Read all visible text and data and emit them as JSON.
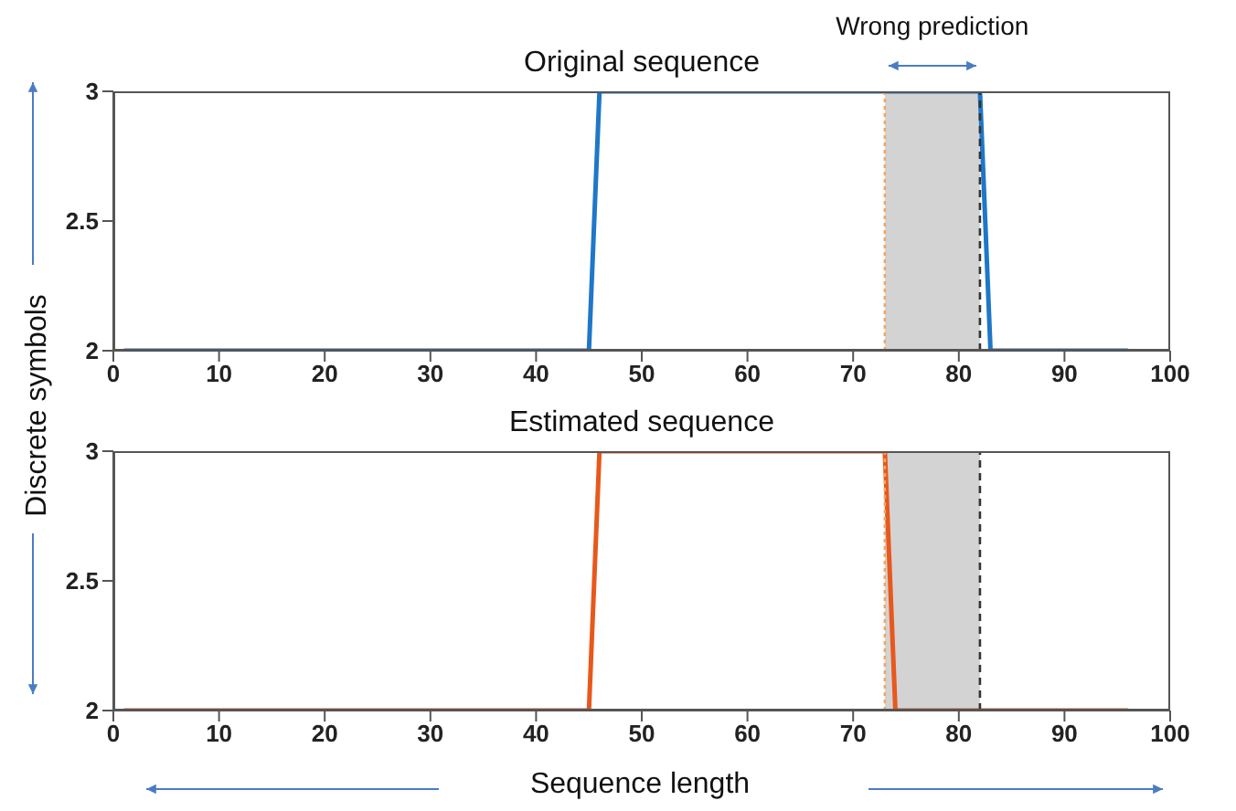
{
  "chart_data": [
    {
      "type": "line",
      "title": "Original sequence",
      "ylabel": "Discrete symbols",
      "x": [
        1,
        45,
        46,
        82,
        83,
        96
      ],
      "series": [
        {
          "color": "#1f77c8",
          "values": [
            2,
            2,
            3,
            3,
            2,
            2
          ]
        }
      ],
      "xlim": [
        0,
        100
      ],
      "xticks": [
        0,
        10,
        20,
        30,
        40,
        50,
        60,
        70,
        80,
        90,
        100
      ],
      "ylim": [
        2,
        3
      ],
      "yticks": [
        2,
        2.5,
        3
      ],
      "bands": [
        {
          "axis": "x",
          "from": 73,
          "to": 82,
          "label": "Wrong prediction",
          "color": "#d3d3d3"
        }
      ],
      "ref_lines": [
        {
          "axis": "x",
          "value": 73,
          "color": "#f4a460",
          "line_style": "dotted"
        },
        {
          "axis": "x",
          "value": 82,
          "color": "#333333",
          "line_style": "dashed"
        }
      ]
    },
    {
      "type": "line",
      "title": "Estimated sequence",
      "xlabel": "Sequence length",
      "x": [
        1,
        45,
        46,
        73,
        74,
        96
      ],
      "series": [
        {
          "color": "#e8581c",
          "values": [
            2,
            2,
            3,
            3,
            2,
            2
          ]
        }
      ],
      "xlim": [
        0,
        100
      ],
      "xticks": [
        0,
        10,
        20,
        30,
        40,
        50,
        60,
        70,
        80,
        90,
        100
      ],
      "ylim": [
        2,
        3
      ],
      "yticks": [
        2,
        2.5,
        3
      ],
      "bands": [
        {
          "axis": "x",
          "from": 73,
          "to": 82,
          "color": "#d3d3d3"
        }
      ],
      "ref_lines": [
        {
          "axis": "x",
          "value": 73,
          "color": "#f4a460",
          "line_style": "dotted"
        },
        {
          "axis": "x",
          "value": 82,
          "color": "#333333",
          "line_style": "dashed"
        }
      ]
    }
  ]
}
